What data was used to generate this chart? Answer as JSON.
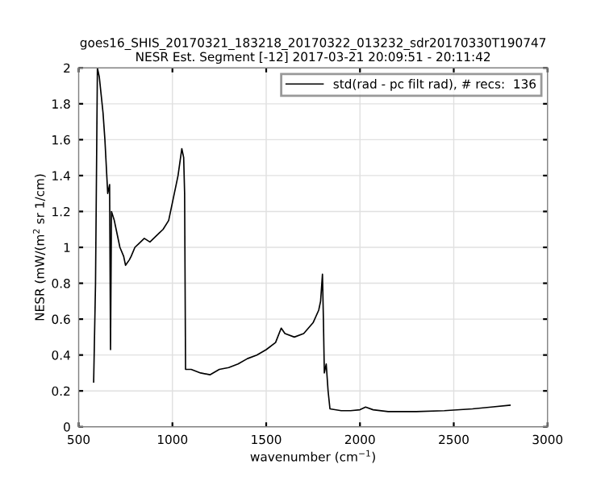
{
  "chart_data": {
    "type": "line",
    "title": "goes16_SHIS_20170321_183218_20170322_013232_sdr20170330T190747",
    "subtitle": "NESR Est. Segment [-12] 2017-03-21 20:09:51 - 20:11:42",
    "xlabel": "wavenumber (cm$^{−1}$)",
    "ylabel": "NESR (mW/(m$^{2}$ sr 1/cm)",
    "series": [
      {
        "name": "std(rad - pc filt rad), # recs:  136",
        "color": "#000000",
        "x": [
          580,
          590,
          600,
          610,
          620,
          630,
          640,
          655,
          665,
          670,
          675,
          690,
          700,
          720,
          740,
          750,
          770,
          780,
          800,
          820,
          850,
          880,
          900,
          930,
          950,
          980,
          1000,
          1020,
          1030,
          1050,
          1060,
          1065,
          1070,
          1100,
          1150,
          1200,
          1250,
          1300,
          1350,
          1400,
          1450,
          1500,
          1550,
          1580,
          1600,
          1650,
          1700,
          1750,
          1780,
          1790,
          1800,
          1805,
          1810,
          1820,
          1830,
          1840,
          1900,
          1950,
          2000,
          2030,
          2070,
          2150,
          2300,
          2450,
          2600,
          2700,
          2800
        ],
        "values": [
          0.25,
          0.8,
          2.0,
          1.95,
          1.85,
          1.75,
          1.6,
          1.3,
          1.35,
          0.43,
          1.2,
          1.15,
          1.1,
          1.0,
          0.95,
          0.9,
          0.93,
          0.95,
          1.0,
          1.02,
          1.05,
          1.03,
          1.05,
          1.08,
          1.1,
          1.15,
          1.25,
          1.35,
          1.4,
          1.55,
          1.5,
          1.3,
          0.32,
          0.32,
          0.3,
          0.29,
          0.32,
          0.33,
          0.35,
          0.38,
          0.4,
          0.43,
          0.47,
          0.55,
          0.52,
          0.5,
          0.52,
          0.58,
          0.65,
          0.7,
          0.85,
          0.6,
          0.3,
          0.35,
          0.2,
          0.1,
          0.09,
          0.09,
          0.095,
          0.11,
          0.095,
          0.085,
          0.085,
          0.09,
          0.1,
          0.11,
          0.12
        ]
      }
    ],
    "xlim": [
      500,
      3000
    ],
    "xticks": [
      500,
      1000,
      1500,
      2000,
      2500,
      3000
    ],
    "ylim": [
      0,
      2
    ],
    "yticks": [
      0,
      0.2,
      0.4,
      0.6,
      0.8,
      1,
      1.2,
      1.4,
      1.6,
      1.8,
      2
    ],
    "grid": true,
    "legend": "top right"
  }
}
